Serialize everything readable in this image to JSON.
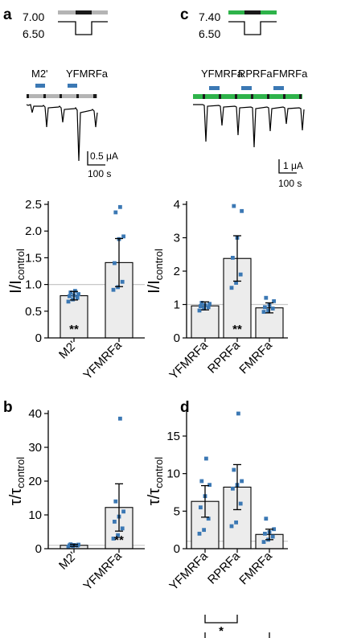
{
  "panels": {
    "a": "a",
    "b": "b",
    "c": "c",
    "d": "d"
  },
  "colors": {
    "bar_fill": "#ececec",
    "dot": "#3b78b4",
    "gray_ref": "#c8c8c8",
    "protocol_gray": "#b4b4b4",
    "protocol_green": "#2eb34a",
    "protocol_black": "#1a1a1a"
  },
  "protocol_a": {
    "ph_high": "7.00",
    "ph_low": "6.50",
    "label_1": "M2'",
    "label_2": "YFMRFa",
    "scale_current": "0.5 μA",
    "scale_time": "100 s"
  },
  "protocol_c": {
    "ph_high": "7.40",
    "ph_low": "6.50",
    "label_1": "YFMRFa",
    "label_2": "RPRFa",
    "label_3": "FMRFa",
    "scale_current": "1 μA",
    "scale_time": "100 s"
  },
  "chart_data": [
    {
      "panel": "a",
      "type": "bar",
      "categories": [
        "M2'",
        "YFMRFa"
      ],
      "values": [
        0.79,
        1.41
      ],
      "error": [
        0.08,
        0.45
      ],
      "points": [
        [
          0.68,
          0.72,
          0.75,
          0.78,
          0.8,
          0.82,
          0.85,
          0.88
        ],
        [
          0.9,
          0.95,
          1.05,
          1.4,
          1.85,
          1.9,
          2.35,
          2.45
        ]
      ],
      "reference_line": 1.0,
      "ylim": [
        0,
        2.5
      ],
      "yticks": [
        "0",
        "0.5",
        "1.0",
        "1.5",
        "2.0",
        "2.5"
      ],
      "ytick_values": [
        0,
        0.5,
        1.0,
        1.5,
        2.0,
        2.5
      ],
      "ylabel_main": "I/I",
      "ylabel_sub": "control",
      "significance": [
        {
          "category": "M2'",
          "label": "**"
        }
      ]
    },
    {
      "panel": "b",
      "type": "bar",
      "categories": [
        "M2'",
        "YFMRFa"
      ],
      "values": [
        1.0,
        12.2
      ],
      "error": [
        0.3,
        7.0
      ],
      "points": [
        [
          0.6,
          0.8,
          0.9,
          1.0,
          1.1,
          1.2,
          1.3
        ],
        [
          3.0,
          4.0,
          6.0,
          8.0,
          9.5,
          11.0,
          14.0,
          38.5
        ]
      ],
      "reference_line": 1.0,
      "ylim": [
        0,
        40
      ],
      "yticks": [
        "0",
        "10",
        "20",
        "30",
        "40"
      ],
      "ytick_values": [
        0,
        10,
        20,
        30,
        40
      ],
      "ylabel_main": "τ/τ",
      "ylabel_sub": "control",
      "significance": [
        {
          "category": "YFMRFa",
          "label": "**"
        }
      ]
    },
    {
      "panel": "c",
      "type": "bar",
      "categories": [
        "YFMRFa",
        "RPRFa",
        "FMRFa"
      ],
      "values": [
        0.96,
        2.38,
        0.9
      ],
      "error": [
        0.12,
        0.68,
        0.15
      ],
      "points": [
        [
          0.82,
          0.88,
          0.92,
          0.95,
          0.98,
          1.02,
          1.05
        ],
        [
          1.5,
          1.65,
          1.9,
          2.4,
          3.0,
          3.8,
          3.95
        ],
        [
          0.78,
          0.82,
          0.88,
          0.92,
          0.98,
          1.1,
          1.2
        ]
      ],
      "reference_line": 1.0,
      "ylim": [
        0,
        4
      ],
      "yticks": [
        "0",
        "1",
        "2",
        "3",
        "4"
      ],
      "ytick_values": [
        0,
        1,
        2,
        3,
        4
      ],
      "ylabel_main": "I/I",
      "ylabel_sub": "control",
      "significance": [
        {
          "category": "RPRFa",
          "label": "**"
        }
      ]
    },
    {
      "panel": "d",
      "type": "bar",
      "categories": [
        "YFMRFa",
        "RPRFa",
        "FMRFa"
      ],
      "values": [
        6.3,
        8.2,
        1.9
      ],
      "error": [
        2.1,
        3.0,
        0.7
      ],
      "points": [
        [
          2.0,
          2.5,
          4.0,
          5.5,
          7.0,
          8.5,
          9.0,
          12.0
        ],
        [
          3.0,
          3.5,
          6.0,
          8.0,
          8.5,
          9.0,
          10.5,
          18.0
        ],
        [
          0.9,
          1.2,
          1.6,
          2.0,
          2.2,
          2.6,
          4.0
        ]
      ],
      "reference_line": 1.0,
      "ylim": [
        0,
        18
      ],
      "yticks": [
        "0",
        "5",
        "10",
        "15"
      ],
      "ytick_values": [
        0,
        5,
        10,
        15
      ],
      "ylabel_main": "τ/τ",
      "ylabel_sub": "control",
      "significance_brackets": [
        {
          "from": "YFMRFa",
          "to": "RPRFa",
          "label": "*"
        },
        {
          "from": "YFMRFa",
          "to": "FMRFa",
          "label": "***"
        }
      ]
    }
  ]
}
